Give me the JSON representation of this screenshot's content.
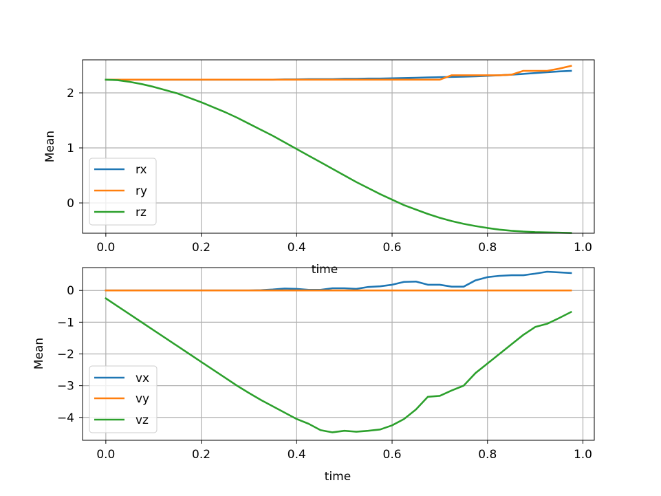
{
  "chart_data": [
    {
      "type": "line",
      "xlabel": "time",
      "ylabel": "Mean",
      "xlim": [
        -0.0488,
        1.0238
      ],
      "ylim": [
        -0.55,
        2.6
      ],
      "xticks": [
        0.0,
        0.2,
        0.4,
        0.6,
        0.8,
        1.0
      ],
      "xtick_labels": [
        "0.0",
        "0.2",
        "0.4",
        "0.6",
        "0.8",
        "1.0"
      ],
      "yticks": [
        0,
        1,
        2
      ],
      "ytick_labels": [
        "0",
        "1",
        "2"
      ],
      "grid": true,
      "legend_position": "lower-left",
      "x": [
        0.0,
        0.025,
        0.05,
        0.075,
        0.1,
        0.125,
        0.15,
        0.175,
        0.2,
        0.225,
        0.25,
        0.275,
        0.3,
        0.325,
        0.35,
        0.375,
        0.4,
        0.425,
        0.45,
        0.475,
        0.5,
        0.525,
        0.55,
        0.575,
        0.6,
        0.625,
        0.65,
        0.675,
        0.7,
        0.725,
        0.75,
        0.775,
        0.8,
        0.825,
        0.85,
        0.875,
        0.9,
        0.925,
        0.95,
        0.975
      ],
      "series": [
        {
          "name": "rx",
          "color": "#1f77b4",
          "values": [
            2.24,
            2.24,
            2.24,
            2.24,
            2.24,
            2.24,
            2.24,
            2.24,
            2.24,
            2.24,
            2.24,
            2.24,
            2.24,
            2.24,
            2.24,
            2.245,
            2.245,
            2.25,
            2.25,
            2.25,
            2.255,
            2.255,
            2.26,
            2.26,
            2.265,
            2.27,
            2.275,
            2.28,
            2.285,
            2.29,
            2.295,
            2.3,
            2.31,
            2.32,
            2.33,
            2.345,
            2.36,
            2.375,
            2.39,
            2.4
          ]
        },
        {
          "name": "ry",
          "color": "#ff7f0e",
          "values": [
            2.24,
            2.24,
            2.24,
            2.24,
            2.24,
            2.24,
            2.24,
            2.24,
            2.24,
            2.24,
            2.24,
            2.24,
            2.24,
            2.24,
            2.24,
            2.24,
            2.24,
            2.24,
            2.24,
            2.24,
            2.24,
            2.24,
            2.24,
            2.24,
            2.24,
            2.24,
            2.24,
            2.24,
            2.24,
            2.32,
            2.32,
            2.32,
            2.32,
            2.32,
            2.33,
            2.4,
            2.4,
            2.4,
            2.44,
            2.49
          ]
        },
        {
          "name": "rz",
          "color": "#2ca02c",
          "values": [
            2.24,
            2.23,
            2.2,
            2.16,
            2.11,
            2.05,
            1.99,
            1.91,
            1.83,
            1.74,
            1.65,
            1.55,
            1.44,
            1.33,
            1.22,
            1.1,
            0.98,
            0.86,
            0.74,
            0.62,
            0.5,
            0.38,
            0.27,
            0.16,
            0.06,
            -0.04,
            -0.12,
            -0.2,
            -0.27,
            -0.33,
            -0.38,
            -0.42,
            -0.455,
            -0.485,
            -0.505,
            -0.52,
            -0.53,
            -0.535,
            -0.54,
            -0.545
          ]
        }
      ]
    },
    {
      "type": "line",
      "xlabel": "time",
      "ylabel": "Mean",
      "xlim": [
        -0.0488,
        1.0238
      ],
      "ylim": [
        -4.72,
        0.72
      ],
      "xticks": [
        0.0,
        0.2,
        0.4,
        0.6,
        0.8,
        1.0
      ],
      "xtick_labels": [
        "0.0",
        "0.2",
        "0.4",
        "0.6",
        "0.8",
        "1.0"
      ],
      "yticks": [
        0,
        -1,
        -2,
        -3,
        -4
      ],
      "ytick_labels": [
        "0",
        "−1",
        "−2",
        "−3",
        "−4"
      ],
      "grid": true,
      "legend_position": "lower-left",
      "x": [
        0.0,
        0.025,
        0.05,
        0.075,
        0.1,
        0.125,
        0.15,
        0.175,
        0.2,
        0.225,
        0.25,
        0.275,
        0.3,
        0.325,
        0.35,
        0.375,
        0.4,
        0.425,
        0.45,
        0.475,
        0.5,
        0.525,
        0.55,
        0.575,
        0.6,
        0.625,
        0.65,
        0.675,
        0.7,
        0.725,
        0.75,
        0.775,
        0.8,
        0.825,
        0.85,
        0.875,
        0.9,
        0.925,
        0.95,
        0.975
      ],
      "series": [
        {
          "name": "vx",
          "color": "#1f77b4",
          "values": [
            0,
            0,
            0,
            0,
            0,
            0,
            0,
            0,
            0,
            0,
            0,
            0,
            0,
            0.01,
            0.03,
            0.06,
            0.05,
            0.02,
            0.02,
            0.07,
            0.07,
            0.05,
            0.11,
            0.13,
            0.18,
            0.27,
            0.28,
            0.18,
            0.18,
            0.12,
            0.12,
            0.32,
            0.42,
            0.46,
            0.48,
            0.48,
            0.53,
            0.59,
            0.57,
            0.55
          ]
        },
        {
          "name": "vy",
          "color": "#ff7f0e",
          "values": [
            0,
            0,
            0,
            0,
            0,
            0,
            0,
            0,
            0,
            0,
            0,
            0,
            0,
            0,
            0,
            0,
            0,
            0,
            0,
            0,
            0,
            0,
            0,
            0,
            0,
            0,
            0,
            0,
            0,
            0,
            0,
            0,
            0,
            0,
            0,
            0,
            0,
            0,
            0,
            0
          ]
        },
        {
          "name": "vz",
          "color": "#2ca02c",
          "values": [
            -0.25,
            -0.5,
            -0.75,
            -1.0,
            -1.25,
            -1.5,
            -1.75,
            -2.0,
            -2.25,
            -2.5,
            -2.75,
            -3.0,
            -3.23,
            -3.45,
            -3.65,
            -3.85,
            -4.05,
            -4.2,
            -4.4,
            -4.47,
            -4.42,
            -4.45,
            -4.42,
            -4.38,
            -4.25,
            -4.05,
            -3.75,
            -3.35,
            -3.32,
            -3.15,
            -3.0,
            -2.6,
            -2.3,
            -2.0,
            -1.7,
            -1.4,
            -1.15,
            -1.05,
            -0.87,
            -0.68
          ]
        }
      ]
    }
  ]
}
